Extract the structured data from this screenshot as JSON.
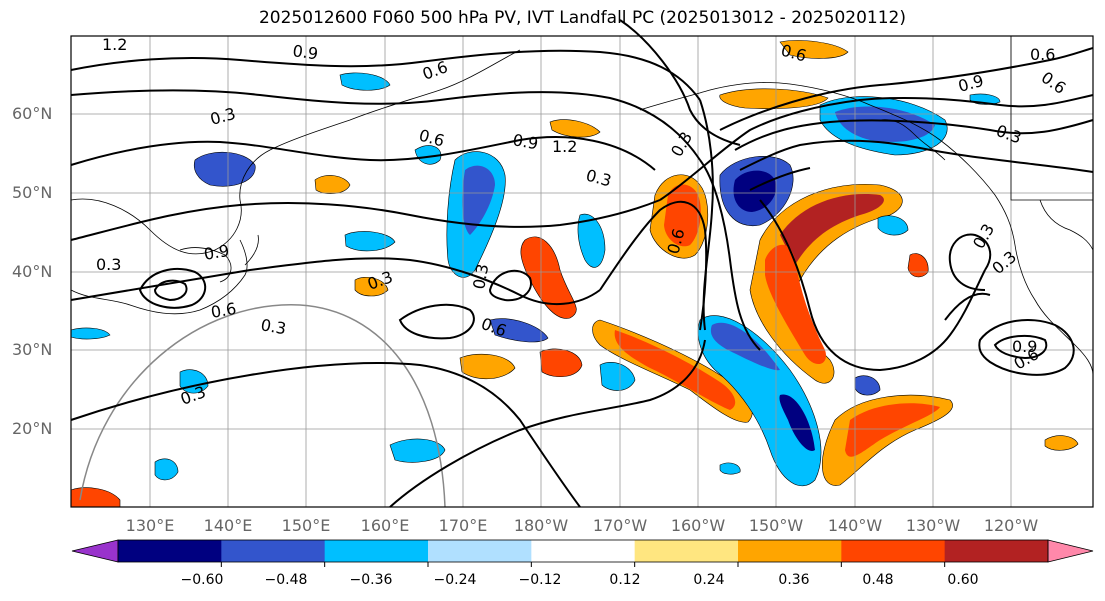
{
  "title": "2025012600 F060 500 hPa PV, IVT Landfall PC (2025013012 - 2025020112)",
  "lat_labels": [
    "60°N",
    "50°N",
    "40°N",
    "30°N",
    "20°N"
  ],
  "lon_labels": [
    "130°E",
    "140°E",
    "150°E",
    "160°E",
    "170°E",
    "180°W",
    "170°W",
    "160°W",
    "150°W",
    "140°W",
    "130°W",
    "120°W"
  ],
  "contour_labels": [
    "1.2",
    "0.9",
    "0.6",
    "0.3",
    "0.3",
    "0.6",
    "0.9",
    "1.2",
    "0.3",
    "0.6",
    "0.9",
    "0.6",
    "0.3",
    "0.3",
    "0.6",
    "0.3",
    "0.3",
    "0.6",
    "0.9",
    "0.6",
    "0.3",
    "0.3",
    "0.6",
    "0.9",
    "0.6",
    "0.3",
    "0.3"
  ],
  "colorbar": {
    "ticks": [
      "−0.60",
      "−0.48",
      "−0.36",
      "−0.24",
      "−0.12",
      "0.12",
      "0.24",
      "0.36",
      "0.48",
      "0.60"
    ],
    "colors": [
      "#9933cc",
      "#000080",
      "#3355cc",
      "#00bfff",
      "#b0e0ff",
      "#ffffff",
      "#ffe680",
      "#ffa500",
      "#ff4500",
      "#b22222",
      "#ff88aa"
    ]
  }
}
